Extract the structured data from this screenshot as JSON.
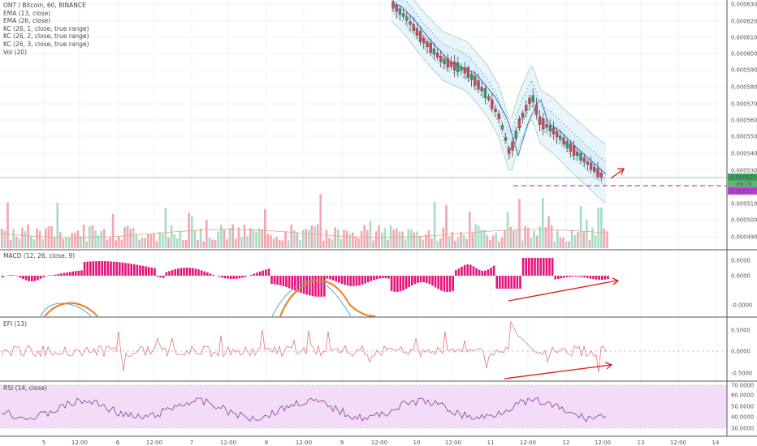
{
  "symbol_title": "ONT / Bitcoin, 60, BINANCE",
  "indicators": [
    "EMA (13, close)",
    "EMA (26, close)",
    "KC (26, 1, close, true range)",
    "KC (26, 2, close, true range)",
    "KC (26, 3, close, true range)",
    "Vol (20)"
  ],
  "panels": {
    "macd": {
      "title": "MACD (12, 26, close, 9)",
      "ticks": [
        "0.0000",
        "0.0000",
        "-0.0000"
      ]
    },
    "efi": {
      "title": "EFI (13)",
      "ticks": [
        "0.5000",
        "0.0000",
        "-0.5000"
      ]
    },
    "rsi": {
      "title": "RSI (14, close)",
      "ticks": [
        "70.0000",
        "60.0000",
        "50.0000",
        "40.0000",
        "30.0000"
      ]
    }
  },
  "price_axis": {
    "ticks": [
      "0.0006300",
      "0.0006200",
      "0.0006100",
      "0.0006000",
      "0.0005900",
      "0.0005800",
      "0.0005700",
      "0.0005600",
      "0.0005500",
      "0.0005400",
      "0.0005300",
      "0.0005100",
      "0.0005000",
      "0.0004900"
    ],
    "last_price_label": "0.0005253",
    "countdown_label": "06:29",
    "support_label": "0.0005207"
  },
  "time_axis": {
    "labels": [
      "5",
      "12:00",
      "6",
      "12:00",
      "7",
      "12:00",
      "8",
      "12:00",
      "9",
      "12:00",
      "10",
      "12:00",
      "11",
      "12:00",
      "12",
      "12:00",
      "13",
      "12:00",
      "14"
    ]
  },
  "colors": {
    "up": "#2e9c6e",
    "down": "#c94b5c",
    "vol_up": "#a6dcc6",
    "vol_down": "#f2a7b0",
    "macd_hist": "#e5147a",
    "arrow": "#e01818",
    "support_line": "#c33be0",
    "last_price": "#3aa35a",
    "rsi_band": "#f2dcf7",
    "kc_fill": "#dceefb",
    "ema_fast": "#f08c2c",
    "ema_slow": "#3a6fc2"
  },
  "chart_data": {
    "type": "candlestick",
    "symbol": "ONT / Bitcoin, 60, BINANCE",
    "price_axis_range": [
      0.00049,
      0.00063
    ],
    "visible_price_path": {
      "approx_points": [
        {
          "time": "10 00:00",
          "close": 0.00063
        },
        {
          "time": "10 06:00",
          "close": 0.000617
        },
        {
          "time": "10 12:00",
          "close": 0.000592
        },
        {
          "time": "11 00:00",
          "close": 0.000575
        },
        {
          "time": "11 06:00",
          "close": 0.00054
        },
        {
          "time": "11 12:00",
          "close": 0.000565
        },
        {
          "time": "12 00:00",
          "close": 0.00054
        },
        {
          "time": "12 12:00",
          "close": 0.0005253
        }
      ]
    },
    "last_price": 0.0005253,
    "support_level": 0.0005207,
    "subpanels": [
      "MACD (12, 26, close, 9)",
      "EFI (13)",
      "RSI (14, close)"
    ],
    "annotations": [
      "arrow up-right at last price",
      "rising divergence arrow on MACD",
      "rising divergence arrow on EFI"
    ]
  }
}
